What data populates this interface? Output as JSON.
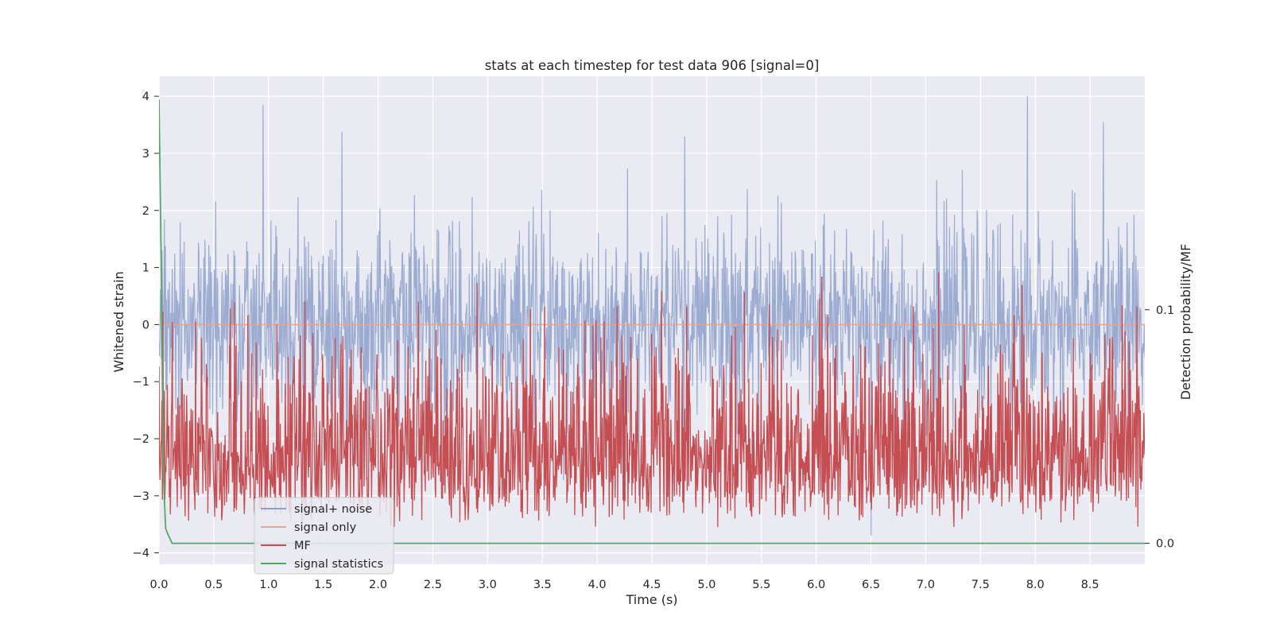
{
  "chart_data": {
    "type": "line",
    "title": "stats at each timestep for test data 906 [signal=0]",
    "xlabel": "Time (s)",
    "ylabel": "Whitened strain",
    "ylabel_right": "Detection probability/MF",
    "xlim": [
      0.0,
      9.0
    ],
    "ylim": [
      -4.2,
      4.35
    ],
    "ylim_right": [
      -0.009,
      0.2
    ],
    "x_ticks": [
      "0.0",
      "0.5",
      "1.0",
      "1.5",
      "2.0",
      "2.5",
      "3.0",
      "3.5",
      "4.0",
      "4.5",
      "5.0",
      "5.5",
      "6.0",
      "6.5",
      "7.0",
      "7.5",
      "8.0",
      "8.5"
    ],
    "y_ticks": [
      "4",
      "3",
      "2",
      "1",
      "0",
      "−1",
      "−2",
      "−3",
      "−4"
    ],
    "y_ticks_right": [
      "0.1",
      "0.0"
    ],
    "grid": true,
    "legend_position": "lower-left",
    "legend": [
      {
        "label": "signal+ noise",
        "color": "#8da0cb"
      },
      {
        "label": "signal only",
        "color": "#e8a58b"
      },
      {
        "label": "MF",
        "color": "#c44e52"
      },
      {
        "label": "signal statistics",
        "color": "#55a868"
      }
    ],
    "series": [
      {
        "name": "signal+ noise",
        "axis": "left",
        "color": "#8da0cb",
        "description": "whitened strain noise, roughly zero-mean, mostly within -2 to 2",
        "peaks": [
          {
            "x": 0.95,
            "y": 3.85
          },
          {
            "x": 1.67,
            "y": 3.38
          },
          {
            "x": 4.8,
            "y": 3.3
          },
          {
            "x": 7.93,
            "y": 4.0
          },
          {
            "x": 8.62,
            "y": 3.55
          },
          {
            "x": 6.5,
            "y": -3.7
          },
          {
            "x": 4.38,
            "y": -3.0
          },
          {
            "x": 0.75,
            "y": -3.0
          }
        ]
      },
      {
        "name": "signal only",
        "axis": "left",
        "color": "#e8a58b",
        "values": "flat at 0"
      },
      {
        "name": "MF",
        "axis": "right",
        "color": "#c44e52",
        "description": "matched filter output, mostly between 0.0 and 0.1"
      },
      {
        "name": "signal statistics",
        "axis": "right",
        "color": "#55a868",
        "x": [
          0.0,
          0.02,
          0.04,
          0.06,
          0.08,
          0.12,
          0.2,
          9.0
        ],
        "y": [
          0.19,
          0.12,
          0.03,
          0.0065,
          0.004,
          0.0,
          0.0,
          0.0
        ]
      }
    ]
  }
}
